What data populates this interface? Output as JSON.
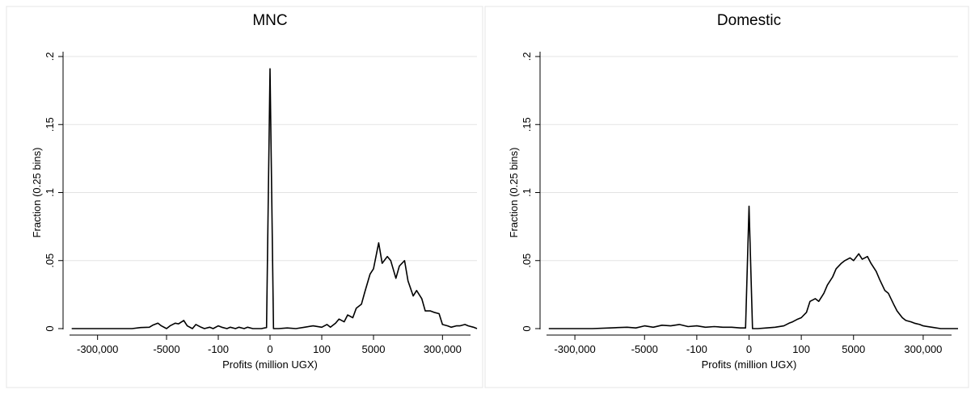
{
  "chart_data": [
    {
      "type": "line",
      "title": "MNC",
      "xlabel": "Profits (million UGX)",
      "ylabel": "Fraction (0.25 bins)",
      "xlim": [
        -12,
        12
      ],
      "ylim": [
        0,
        0.2
      ],
      "x_ticks": [
        {
          "value": -10,
          "label": "-300,000"
        },
        {
          "value": -6,
          "label": "-5000"
        },
        {
          "value": -3,
          "label": "-100"
        },
        {
          "value": 0,
          "label": "0"
        },
        {
          "value": 3,
          "label": "100"
        },
        {
          "value": 6,
          "label": "5000"
        },
        {
          "value": 10,
          "label": "300,000"
        }
      ],
      "y_ticks": [
        {
          "value": 0,
          "label": "0"
        },
        {
          "value": 0.05,
          "label": ".05"
        },
        {
          "value": 0.1,
          "label": ".1"
        },
        {
          "value": 0.15,
          "label": ".15"
        },
        {
          "value": 0.2,
          "label": ".2"
        }
      ],
      "grid": true,
      "series": [
        {
          "x": [
            -11.5,
            -9.5,
            -8.0,
            -7.5,
            -7.0,
            -6.8,
            -6.5,
            -6.3,
            -6.0,
            -5.8,
            -5.5,
            -5.3,
            -5.0,
            -4.8,
            -4.5,
            -4.3,
            -4.0,
            -3.8,
            -3.5,
            -3.3,
            -3.0,
            -2.8,
            -2.5,
            -2.3,
            -2.0,
            -1.8,
            -1.5,
            -1.3,
            -1.0,
            -0.5,
            -0.2,
            0.0,
            0.2,
            0.5,
            1.0,
            1.5,
            2.0,
            2.5,
            3.0,
            3.3,
            3.5,
            3.8,
            4.0,
            4.3,
            4.5,
            4.8,
            5.0,
            5.3,
            5.5,
            5.8,
            6.0,
            6.3,
            6.5,
            6.8,
            7.0,
            7.3,
            7.5,
            7.8,
            8.0,
            8.3,
            8.5,
            8.8,
            9.0,
            9.3,
            9.5,
            9.8,
            10.0,
            10.3,
            10.5,
            10.8,
            11.0,
            11.3,
            11.5,
            11.8,
            12.0
          ],
          "y": [
            0,
            0,
            0,
            0.0008,
            0.001,
            0.0025,
            0.004,
            0.002,
            0,
            0.002,
            0.004,
            0.0035,
            0.006,
            0.002,
            0,
            0.003,
            0.001,
            0,
            0.001,
            0,
            0.002,
            0.001,
            0,
            0.001,
            0,
            0.001,
            0,
            0.001,
            0,
            0,
            0.0008,
            0.191,
            0,
            0,
            0.0005,
            0,
            0.001,
            0.002,
            0.001,
            0.003,
            0.001,
            0.004,
            0.007,
            0.005,
            0.01,
            0.008,
            0.015,
            0.018,
            0.027,
            0.04,
            0.044,
            0.063,
            0.048,
            0.053,
            0.05,
            0.037,
            0.046,
            0.05,
            0.035,
            0.024,
            0.028,
            0.022,
            0.013,
            0.013,
            0.012,
            0.011,
            0.003,
            0.002,
            0.001,
            0.002,
            0.002,
            0.003,
            0.002,
            0.001,
            0
          ]
        }
      ]
    },
    {
      "type": "line",
      "title": "Domestic",
      "xlabel": "Profits (million UGX)",
      "ylabel": "Fraction (0.25 bins)",
      "xlim": [
        -12,
        12
      ],
      "ylim": [
        0,
        0.2
      ],
      "x_ticks": [
        {
          "value": -10,
          "label": "-300,000"
        },
        {
          "value": -6,
          "label": "-5000"
        },
        {
          "value": -3,
          "label": "-100"
        },
        {
          "value": 0,
          "label": "0"
        },
        {
          "value": 3,
          "label": "100"
        },
        {
          "value": 6,
          "label": "5000"
        },
        {
          "value": 10,
          "label": "300,000"
        }
      ],
      "y_ticks": [
        {
          "value": 0,
          "label": "0"
        },
        {
          "value": 0.05,
          "label": ".05"
        },
        {
          "value": 0.1,
          "label": ".1"
        },
        {
          "value": 0.15,
          "label": ".15"
        },
        {
          "value": 0.2,
          "label": ".2"
        }
      ],
      "grid": true,
      "series": [
        {
          "x": [
            -11.5,
            -10.0,
            -9.0,
            -8.0,
            -7.5,
            -7.0,
            -6.5,
            -6.0,
            -5.5,
            -5.0,
            -4.5,
            -4.0,
            -3.5,
            -3.0,
            -2.5,
            -2.0,
            -1.5,
            -1.0,
            -0.5,
            -0.2,
            0.0,
            0.2,
            0.5,
            1.0,
            1.5,
            2.0,
            2.3,
            2.5,
            2.8,
            3.0,
            3.3,
            3.5,
            3.8,
            4.0,
            4.3,
            4.5,
            4.8,
            5.0,
            5.3,
            5.5,
            5.8,
            6.0,
            6.3,
            6.5,
            6.8,
            7.0,
            7.3,
            7.5,
            7.8,
            8.0,
            8.3,
            8.5,
            8.8,
            9.0,
            9.3,
            9.5,
            9.8,
            10.0,
            10.5,
            11.0,
            11.5,
            12.0
          ],
          "y": [
            0,
            0,
            0,
            0.0005,
            0.0008,
            0.001,
            0.0005,
            0.002,
            0.001,
            0.0025,
            0.002,
            0.003,
            0.0015,
            0.002,
            0.001,
            0.0015,
            0.001,
            0.001,
            0.0005,
            0.0005,
            0.09,
            0,
            0,
            0.0005,
            0.001,
            0.002,
            0.004,
            0.005,
            0.007,
            0.008,
            0.012,
            0.02,
            0.022,
            0.02,
            0.026,
            0.032,
            0.038,
            0.044,
            0.048,
            0.05,
            0.052,
            0.05,
            0.055,
            0.051,
            0.053,
            0.048,
            0.042,
            0.036,
            0.028,
            0.026,
            0.018,
            0.013,
            0.008,
            0.006,
            0.005,
            0.004,
            0.003,
            0.002,
            0.001,
            0,
            0,
            0
          ]
        }
      ]
    }
  ]
}
